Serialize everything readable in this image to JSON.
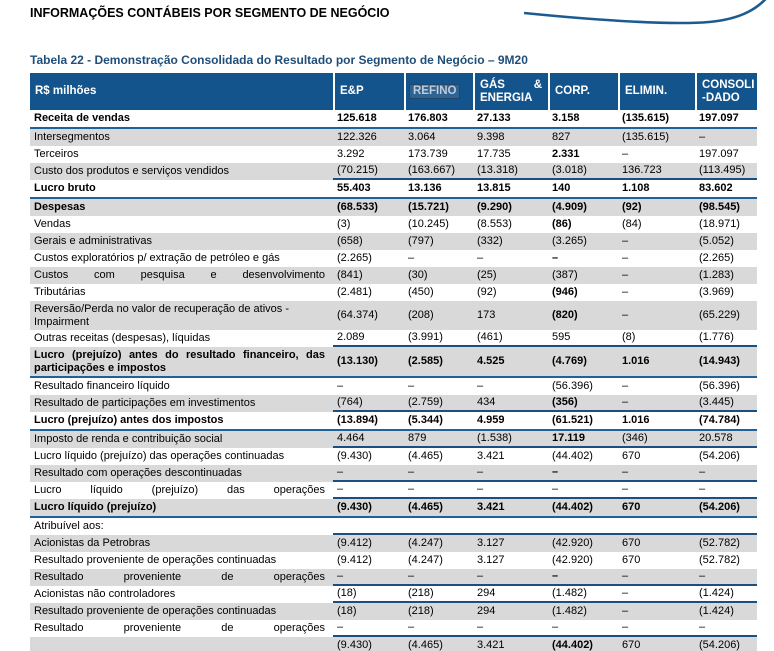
{
  "page": {
    "heading": "INFORMAÇÕES CONTÁBEIS POR SEGMENTO DE NEGÓCIO",
    "table_title": "Tabela 22 - Demonstração Consolidada do Resultado por Segmento de Negócio – 9M20"
  },
  "colors": {
    "header_bg": "#14548C",
    "shaded_row": "#D9D9D9",
    "rule_blue": "#1F6299",
    "title_blue": "#1F4E79",
    "swoosh_blue": "#1C5B8F"
  },
  "table": {
    "unit_header": "R$ milhões",
    "columns": [
      {
        "name": "ep",
        "label": "E&P",
        "lines": [
          "E&P"
        ]
      },
      {
        "name": "refino",
        "label": "REFINO",
        "lines": [
          "REFINO"
        ],
        "muted": true
      },
      {
        "name": "gas-energia",
        "label": "GÁS & ENERGIA",
        "lines": [
          "GÁS &",
          "ENERGIA"
        ],
        "justify_first_line": true
      },
      {
        "name": "corp",
        "label": "CORP.",
        "lines": [
          "CORP."
        ]
      },
      {
        "name": "elimin",
        "label": "ELIMIN.",
        "lines": [
          "ELIMIN."
        ]
      },
      {
        "name": "consolidado",
        "label": "CONSOLI-DADO",
        "lines": [
          "CONSOLI",
          "-DADO"
        ]
      }
    ],
    "rows": [
      {
        "label": "Receita de vendas",
        "values": [
          "125.618",
          "176.803",
          "27.133",
          "3.158",
          "(135.615)",
          "197.097"
        ],
        "bold": true,
        "rule_below": "full"
      },
      {
        "label": "Intersegmentos",
        "values": [
          "122.326",
          "3.064",
          "9.398",
          "827",
          "(135.615)",
          "–"
        ],
        "shaded": true
      },
      {
        "label": "Terceiros",
        "values": [
          "3.292",
          "173.739",
          "17.735",
          "2.331",
          "–",
          "197.097"
        ],
        "corp_bold": true
      },
      {
        "label": "Custo dos produtos e serviços vendidos",
        "values": [
          "(70.215)",
          "(163.667)",
          "(13.318)",
          "(3.018)",
          "136.723",
          "(113.495)"
        ],
        "shaded": true,
        "rule_below": "numeric"
      },
      {
        "label": "Lucro bruto",
        "values": [
          "55.403",
          "13.136",
          "13.815",
          "140",
          "1.108",
          "83.602"
        ],
        "bold": true,
        "rule_below": "full"
      },
      {
        "label": "Despesas",
        "values": [
          "(68.533)",
          "(15.721)",
          "(9.290)",
          "(4.909)",
          "(92)",
          "(98.545)"
        ],
        "bold": true,
        "shaded": true
      },
      {
        "label": "Vendas",
        "values": [
          "(3)",
          "(10.245)",
          "(8.553)",
          "(86)",
          "(84)",
          "(18.971)"
        ],
        "corp_bold": true
      },
      {
        "label": "Gerais e administrativas",
        "values": [
          "(658)",
          "(797)",
          "(332)",
          "(3.265)",
          "–",
          "(5.052)"
        ],
        "shaded": true
      },
      {
        "label": "Custos exploratórios p/ extração de petróleo e gás",
        "values": [
          "(2.265)",
          "–",
          "–",
          "–",
          "–",
          "(2.265)"
        ],
        "corp_bold": true
      },
      {
        "label": "Custos com pesquisa e desenvolvimento",
        "values": [
          "(841)",
          "(30)",
          "(25)",
          "(387)",
          "–",
          "(1.283)"
        ],
        "shaded": true,
        "justify_last": true
      },
      {
        "label": "Tributárias",
        "values": [
          "(2.481)",
          "(450)",
          "(92)",
          "(946)",
          "–",
          "(3.969)"
        ],
        "corp_bold": true
      },
      {
        "label": "Reversão/Perda no valor de recuperação de ativos - Impairment",
        "values": [
          "(64.374)",
          "(208)",
          "173",
          "(820)",
          "–",
          "(65.229)"
        ],
        "shaded": true,
        "corp_bold": true
      },
      {
        "label": "Outras receitas (despesas), líquidas",
        "values": [
          "2.089",
          "(3.991)",
          "(461)",
          "595",
          "(8)",
          "(1.776)"
        ],
        "rule_below": "numeric"
      },
      {
        "label": "Lucro (prejuízo) antes do resultado financeiro, das participações e impostos",
        "values": [
          "(13.130)",
          "(2.585)",
          "4.525",
          "(4.769)",
          "1.016",
          "(14.943)"
        ],
        "bold": true,
        "shaded": true,
        "justify": true,
        "rule_below": "full"
      },
      {
        "label": "Resultado financeiro líquido",
        "values": [
          "–",
          "–",
          "–",
          "(56.396)",
          "–",
          "(56.396)"
        ]
      },
      {
        "label": "Resultado de participações em investimentos",
        "values": [
          "(764)",
          "(2.759)",
          "434",
          "(356)",
          "–",
          "(3.445)"
        ],
        "shaded": true,
        "corp_bold": true,
        "rule_below": "numeric"
      },
      {
        "label": "Lucro (prejuízo) antes dos impostos",
        "values": [
          "(13.894)",
          "(5.344)",
          "4.959",
          "(61.521)",
          "1.016",
          "(74.784)"
        ],
        "bold": true,
        "rule_below": "full"
      },
      {
        "label": "Imposto de renda e contribuição social",
        "values": [
          "4.464",
          "879",
          "(1.538)",
          "17.119",
          "(346)",
          "20.578"
        ],
        "shaded": true,
        "corp_bold": true,
        "rule_below": "numeric"
      },
      {
        "label": "Lucro líquido (prejuízo) das operações continuadas",
        "values": [
          "(9.430)",
          "(4.465)",
          "3.421",
          "(44.402)",
          "670",
          "(54.206)"
        ]
      },
      {
        "label": "Resultado com operações descontinuadas",
        "values": [
          "–",
          "–",
          "–",
          "–",
          "–",
          "–"
        ],
        "shaded": true,
        "corp_bold": true,
        "rule_below": "numeric"
      },
      {
        "label": "Lucro líquido (prejuízo) das operações",
        "values": [
          "–",
          "–",
          "–",
          "–",
          "–",
          "–"
        ],
        "justify_last": true,
        "rule_below": "numeric"
      },
      {
        "label": "Lucro líquido (prejuízo)",
        "values": [
          "(9.430)",
          "(4.465)",
          "3.421",
          "(44.402)",
          "670",
          "(54.206)"
        ],
        "bold": true,
        "shaded": true,
        "rule_below": "full"
      },
      {
        "label": "Atribuível aos:",
        "values": [
          "",
          "",
          "",
          "",
          "",
          ""
        ],
        "rule_below": "numeric"
      },
      {
        "label": "Acionistas da Petrobras",
        "values": [
          "(9.412)",
          "(4.247)",
          "3.127",
          "(42.920)",
          "670",
          "(52.782)"
        ],
        "shaded": true
      },
      {
        "label": "Resultado proveniente de operações continuadas",
        "values": [
          "(9.412)",
          "(4.247)",
          "3.127",
          "(42.920)",
          "670",
          "(52.782)"
        ]
      },
      {
        "label": "Resultado proveniente de operações",
        "values": [
          "–",
          "–",
          "–",
          "–",
          "–",
          "–"
        ],
        "shaded": true,
        "justify_last": true,
        "corp_bold": true,
        "rule_below": "numeric"
      },
      {
        "label": "Acionistas não controladores",
        "values": [
          "(18)",
          "(218)",
          "294",
          "(1.482)",
          "–",
          "(1.424)"
        ],
        "rule_below": "numeric"
      },
      {
        "label": "Resultado proveniente de operações continuadas",
        "values": [
          "(18)",
          "(218)",
          "294",
          "(1.482)",
          "–",
          "(1.424)"
        ],
        "shaded": true
      },
      {
        "label": "Resultado proveniente de operações",
        "values": [
          "–",
          "–",
          "–",
          "–",
          "–",
          "–"
        ],
        "justify_last": true,
        "rule_below": "numeric"
      },
      {
        "label": "",
        "values": [
          "(9.430)",
          "(4.465)",
          "3.421",
          "(44.402)",
          "670",
          "(54.206)"
        ],
        "shaded": true,
        "corp_bold": true,
        "rule_below": "full"
      }
    ]
  }
}
